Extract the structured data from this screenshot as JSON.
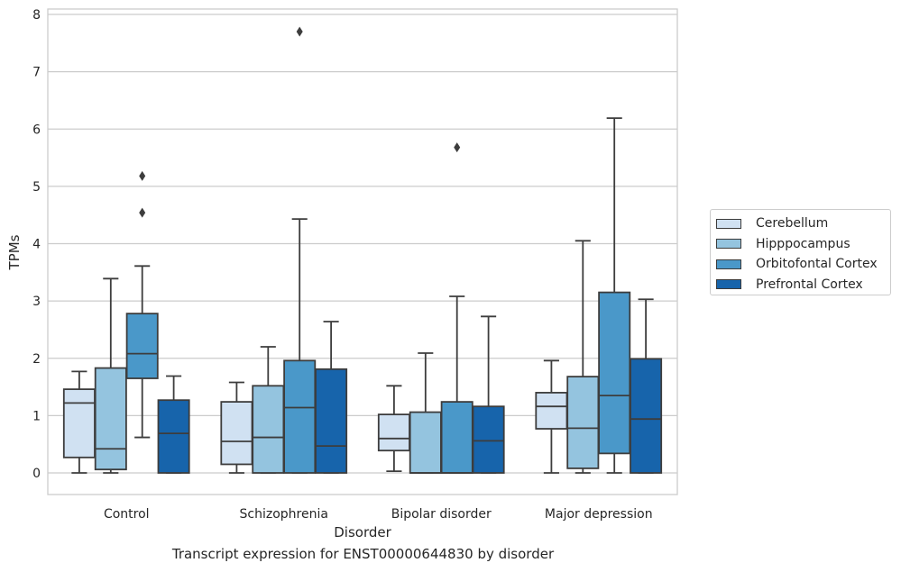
{
  "chart_data": {
    "type": "box",
    "caption": "Transcript expression for ENST00000644830 by disorder",
    "xlabel": "Disorder",
    "ylabel": "TPMs",
    "ylim": [
      -0.37,
      8.1
    ],
    "yticks": [
      0,
      1,
      2,
      3,
      4,
      5,
      6,
      7,
      8
    ],
    "grid": true,
    "legend_position": "right",
    "categories": [
      "Control",
      "Schizophrenia",
      "Bipolar disorder",
      "Major depression"
    ],
    "series": [
      {
        "name": "Cerebellum",
        "color": "#d0e1f2",
        "boxes": [
          {
            "whislo": 0,
            "q1": 0.27,
            "med": 1.22,
            "q3": 1.46,
            "whishi": 1.77,
            "fliers": []
          },
          {
            "whislo": 0,
            "q1": 0.15,
            "med": 0.55,
            "q3": 1.24,
            "whishi": 1.58,
            "fliers": []
          },
          {
            "whislo": 0.03,
            "q1": 0.39,
            "med": 0.6,
            "q3": 1.02,
            "whishi": 1.52,
            "fliers": []
          },
          {
            "whislo": 0,
            "q1": 0.77,
            "med": 1.16,
            "q3": 1.4,
            "whishi": 1.96,
            "fliers": []
          }
        ]
      },
      {
        "name": "Hipppocampus",
        "color": "#94c4df",
        "boxes": [
          {
            "whislo": 0,
            "q1": 0.06,
            "med": 0.42,
            "q3": 1.83,
            "whishi": 3.39,
            "fliers": []
          },
          {
            "whislo": 0,
            "q1": 0,
            "med": 0.62,
            "q3": 1.52,
            "whishi": 2.2,
            "fliers": []
          },
          {
            "whislo": 0,
            "q1": 0,
            "med": 0,
            "q3": 1.06,
            "whishi": 2.09,
            "fliers": []
          },
          {
            "whislo": 0,
            "q1": 0.08,
            "med": 0.78,
            "q3": 1.68,
            "whishi": 4.05,
            "fliers": []
          }
        ]
      },
      {
        "name": "Orbitofontal Cortex",
        "color": "#4a98c9",
        "boxes": [
          {
            "whislo": 0.62,
            "q1": 1.65,
            "med": 2.08,
            "q3": 2.78,
            "whishi": 3.61,
            "fliers": [
              4.54,
              5.18
            ]
          },
          {
            "whislo": 0,
            "q1": 0,
            "med": 1.14,
            "q3": 1.96,
            "whishi": 4.43,
            "fliers": [
              7.7
            ]
          },
          {
            "whislo": 0,
            "q1": 0,
            "med": 0,
            "q3": 1.24,
            "whishi": 3.08,
            "fliers": [
              5.68
            ]
          },
          {
            "whislo": 0,
            "q1": 0.34,
            "med": 1.35,
            "q3": 3.15,
            "whishi": 6.19,
            "fliers": []
          }
        ]
      },
      {
        "name": "Prefrontal Cortex",
        "color": "#1764ab",
        "boxes": [
          {
            "whislo": 0,
            "q1": 0,
            "med": 0.69,
            "q3": 1.27,
            "whishi": 1.69,
            "fliers": []
          },
          {
            "whislo": 0,
            "q1": 0,
            "med": 0.47,
            "q3": 1.81,
            "whishi": 2.64,
            "fliers": []
          },
          {
            "whislo": 0,
            "q1": 0,
            "med": 0.56,
            "q3": 1.16,
            "whishi": 2.73,
            "fliers": []
          },
          {
            "whislo": 0,
            "q1": 0,
            "med": 0.94,
            "q3": 1.99,
            "whishi": 3.03,
            "fliers": []
          }
        ]
      }
    ]
  }
}
